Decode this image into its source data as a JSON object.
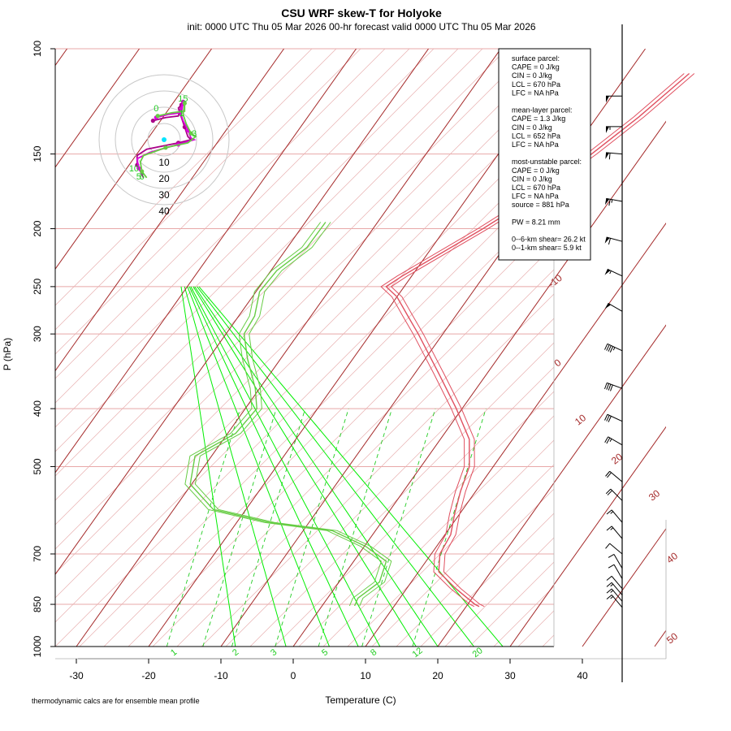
{
  "title": "CSU WRF skew-T for Holyoke",
  "subtitle": "init: 0000 UTC Thu 05 Mar 2026     00-hr forecast valid 0000 UTC Thu 05 Mar 2026",
  "footnote": "thermodynamic calcs are for ensemble mean profile",
  "colors": {
    "isotherm": "#a52a2a",
    "isobar": "#e8a8a8",
    "dry_adiabat_dash": "#e8b0b0",
    "moist_adiabat": "#00ee00",
    "mixing_ratio": "#22cc22",
    "temperature": "#e05060",
    "dewpoint": "#66cc44",
    "barb": "#000000",
    "hodo_ring": "#c8c8c8"
  },
  "info_box": {
    "lines": [
      "surface parcel:",
      "CAPE = 0 J/kg",
      "CIN = 0 J/kg",
      "LCL = 670 hPa",
      "LFC = NA hPa",
      "",
      "mean-layer parcel:",
      "CAPE = 1.3 J/kg",
      "CIN = 0 J/kg",
      "LCL = 652 hPa",
      "LFC = NA hPa",
      "",
      "most-unstable parcel:",
      "CAPE = 0 J/kg",
      "CIN = 0 J/kg",
      "LCL = 670 hPa",
      "LFC = NA hPa",
      "source = 881 hPa",
      "",
      "PW =  8.21 mm",
      "",
      "0--6-km shear= 26.2 kt",
      "0--1-km shear= 5.9 kt"
    ]
  },
  "chart_data": {
    "type": "line",
    "xlabel": "Temperature (C)",
    "ylabel": "P (hPa)",
    "x_range": [
      -33,
      47
    ],
    "p_range": [
      1000,
      100
    ],
    "log_p": true,
    "grid": true,
    "x_ticks": [
      -30,
      -20,
      -10,
      0,
      10,
      20,
      30,
      40
    ],
    "p_ticks": [
      1000,
      850,
      700,
      500,
      400,
      300,
      250,
      200,
      150,
      100
    ],
    "isotherm_labels": [
      "-10",
      "0",
      "10",
      "20",
      "30",
      "40",
      "50"
    ],
    "mixing_ratio_labels": [
      "1",
      "2",
      "3",
      "5",
      "8",
      "12",
      "20"
    ],
    "series": [
      {
        "kind": "temperature",
        "points": [
          [
            857,
            21.8
          ],
          [
            850,
            21.0
          ],
          [
            800,
            16.8
          ],
          [
            750,
            12.8
          ],
          [
            700,
            11.2
          ],
          [
            650,
            10.8
          ],
          [
            600,
            9.3
          ],
          [
            550,
            7.9
          ],
          [
            500,
            6.7
          ],
          [
            450,
            4.0
          ],
          [
            400,
            -0.8
          ],
          [
            350,
            -6.6
          ],
          [
            300,
            -13.4
          ],
          [
            280,
            -16.6
          ],
          [
            260,
            -20.0
          ],
          [
            250,
            -22.5
          ],
          [
            240,
            -21.3
          ],
          [
            200,
            -14.8
          ],
          [
            180,
            -11.5
          ],
          [
            150,
            -7.1
          ],
          [
            130,
            -4.2
          ],
          [
            110,
            -1.5
          ]
        ]
      },
      {
        "kind": "dewpoint",
        "points": [
          [
            855,
            4.5
          ],
          [
            830,
            4.2
          ],
          [
            780,
            5.6
          ],
          [
            720,
            4.5
          ],
          [
            680,
            0.2
          ],
          [
            640,
            -6.0
          ],
          [
            620,
            -15.5
          ],
          [
            590,
            -24.5
          ],
          [
            535,
            -30.2
          ],
          [
            480,
            -32.3
          ],
          [
            440,
            -28.9
          ],
          [
            400,
            -28.4
          ],
          [
            370,
            -30.6
          ],
          [
            330,
            -34.6
          ],
          [
            300,
            -37.5
          ],
          [
            280,
            -37.8
          ],
          [
            255,
            -39.5
          ],
          [
            235,
            -39.2
          ],
          [
            215,
            -37.3
          ],
          [
            195,
            -37.2
          ]
        ]
      }
    ],
    "wind_barbs": [
      {
        "p": 120,
        "spd_kt": 50,
        "dir": 270
      },
      {
        "p": 135,
        "spd_kt": 55,
        "dir": 270
      },
      {
        "p": 150,
        "spd_kt": 60,
        "dir": 275
      },
      {
        "p": 180,
        "spd_kt": 65,
        "dir": 280
      },
      {
        "p": 210,
        "spd_kt": 60,
        "dir": 285
      },
      {
        "p": 240,
        "spd_kt": 55,
        "dir": 295
      },
      {
        "p": 275,
        "spd_kt": 50,
        "dir": 300
      },
      {
        "p": 320,
        "spd_kt": 45,
        "dir": 295
      },
      {
        "p": 370,
        "spd_kt": 40,
        "dir": 290
      },
      {
        "p": 420,
        "spd_kt": 30,
        "dir": 295
      },
      {
        "p": 460,
        "spd_kt": 25,
        "dir": 300
      },
      {
        "p": 530,
        "spd_kt": 20,
        "dir": 310
      },
      {
        "p": 570,
        "spd_kt": 20,
        "dir": 315
      },
      {
        "p": 620,
        "spd_kt": 15,
        "dir": 320
      },
      {
        "p": 660,
        "spd_kt": 15,
        "dir": 320
      },
      {
        "p": 700,
        "spd_kt": 10,
        "dir": 310
      },
      {
        "p": 740,
        "spd_kt": 10,
        "dir": 330
      },
      {
        "p": 770,
        "spd_kt": 10,
        "dir": 330
      },
      {
        "p": 800,
        "spd_kt": 10,
        "dir": 320
      },
      {
        "p": 820,
        "spd_kt": 15,
        "dir": 320
      },
      {
        "p": 840,
        "spd_kt": 15,
        "dir": 320
      },
      {
        "p": 860,
        "spd_kt": 15,
        "dir": 320
      }
    ],
    "hodograph": {
      "ring_labels": [
        "10",
        "20",
        "30",
        "40"
      ],
      "point_labels": [
        {
          "text": "5",
          "u": -6.5,
          "v": -18.5,
          "color": "#22cc22"
        },
        {
          "text": "6",
          "u": -5.5,
          "v": -18.5,
          "color": "#22cc22"
        },
        {
          "text": "10",
          "u": -8,
          "v": -16,
          "color": "#22cc22"
        },
        {
          "text": "3",
          "u": 11,
          "v": -5,
          "color": "#22cc22"
        },
        {
          "text": "1",
          "u": 7,
          "v": 1.5,
          "color": "#22cc22"
        },
        {
          "text": "0",
          "u": -1,
          "v": 3,
          "color": "#22cc22"
        },
        {
          "text": "15",
          "u": 7.5,
          "v": 6,
          "color": "#22cc22"
        }
      ],
      "traces": [
        {
          "color": "#aa0088",
          "uv": [
            [
              -2,
              0
            ],
            [
              2,
              1
            ],
            [
              6,
              1.5
            ],
            [
              7,
              5
            ],
            [
              6,
              4
            ],
            [
              7,
              1
            ],
            [
              8,
              -2
            ],
            [
              9,
              -5
            ],
            [
              10,
              -6
            ],
            [
              6,
              -7
            ],
            [
              -4,
              -9
            ],
            [
              -7,
              -11
            ],
            [
              -7,
              -14
            ],
            [
              -6,
              -16
            ],
            [
              -5,
              -18
            ]
          ]
        },
        {
          "color": "#dd00dd",
          "uv": [
            [
              -1,
              1
            ],
            [
              3,
              2
            ],
            [
              7,
              2.5
            ],
            [
              7.5,
              6
            ],
            [
              6.5,
              3
            ],
            [
              7.5,
              0
            ],
            [
              9,
              -3
            ],
            [
              10,
              -5.5
            ],
            [
              11,
              -6
            ],
            [
              6,
              -7.5
            ],
            [
              -3,
              -10
            ],
            [
              -7,
              -12
            ],
            [
              -6.5,
              -15
            ],
            [
              -5.5,
              -17
            ]
          ]
        },
        {
          "color": "#66cc44",
          "uv": [
            [
              -0.5,
              1.5
            ],
            [
              4,
              2.5
            ],
            [
              8,
              3
            ],
            [
              8,
              5.5
            ],
            [
              7.5,
              2
            ],
            [
              8.5,
              -1
            ],
            [
              10,
              -4
            ],
            [
              11.5,
              -5
            ],
            [
              9,
              -7
            ],
            [
              2,
              -8.5
            ],
            [
              -5,
              -11
            ],
            [
              -6,
              -13
            ],
            [
              -5.5,
              -16
            ],
            [
              -4,
              -18
            ]
          ]
        }
      ]
    }
  }
}
